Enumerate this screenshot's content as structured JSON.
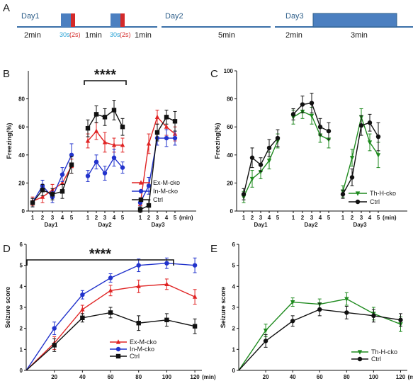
{
  "panel_letters": {
    "A": "A",
    "B": "B",
    "C": "C",
    "D": "D",
    "E": "E"
  },
  "colors": {
    "red": "#e02424",
    "blue": "#2233cc",
    "black": "#111111",
    "green": "#1e8a1e",
    "timeline": "#3a6fa8",
    "box": "#4b7fc0"
  },
  "timeline": {
    "day1": {
      "label": "Day1",
      "d1": "2min",
      "tone1": "30s",
      "shock1": "(2s)",
      "d2": "1min",
      "tone2": "30s",
      "shock2": "(2s)",
      "d3": "1min"
    },
    "day2": {
      "label": "Day2",
      "d1": "5min"
    },
    "day3": {
      "label": "Day3",
      "d1": "2min",
      "d2": "3min"
    }
  },
  "chart_data": [
    {
      "panel": "B",
      "type": "line",
      "ylabel": "Freezing(%)",
      "ylim": [
        0,
        100
      ],
      "yticks": [
        0,
        20,
        40,
        60,
        80
      ],
      "x_unit": "(min)",
      "x_ticks": [
        "1",
        "2",
        "3",
        "4",
        "5"
      ],
      "groups": [
        "Day1",
        "Day2",
        "Day3"
      ],
      "significance": "****",
      "series": [
        {
          "name": "Ex-M-cko",
          "color": "#e02424",
          "marker": "triangle",
          "values": [
            [
              7,
              10,
              15,
              20,
              32
            ],
            [
              50,
              57,
              49,
              47,
              47
            ],
            [
              5,
              48,
              67,
              60,
              55
            ]
          ],
          "errors": [
            [
              3,
              4,
              4,
              5,
              5
            ],
            [
              5,
              6,
              7,
              5,
              5
            ],
            [
              3,
              7,
              5,
              6,
              5
            ]
          ]
        },
        {
          "name": "In-M-cko",
          "color": "#2233cc",
          "marker": "circle",
          "values": [
            [
              6,
              18,
              10,
              26,
              40
            ],
            [
              25,
              35,
              27,
              38,
              31
            ],
            [
              6,
              18,
              52,
              52,
              52
            ]
          ],
          "errors": [
            [
              3,
              4,
              4,
              5,
              8
            ],
            [
              4,
              5,
              5,
              6,
              4
            ],
            [
              3,
              6,
              5,
              6,
              5
            ]
          ]
        },
        {
          "name": "Ctrl",
          "color": "#111111",
          "marker": "square",
          "values": [
            [
              6,
              15,
              12,
              14,
              33
            ],
            [
              59,
              69,
              67,
              72,
              60
            ],
            [
              1,
              4,
              56,
              67,
              64
            ]
          ],
          "errors": [
            [
              3,
              4,
              4,
              5,
              6
            ],
            [
              6,
              6,
              6,
              7,
              6
            ],
            [
              2,
              4,
              6,
              5,
              7
            ]
          ]
        }
      ]
    },
    {
      "panel": "C",
      "type": "line",
      "ylabel": "Freezing(%)",
      "ylim": [
        0,
        100
      ],
      "yticks": [
        0,
        20,
        40,
        60,
        80,
        100
      ],
      "x_unit": "(min)",
      "x_ticks": [
        "1",
        "2",
        "3",
        "4",
        "5"
      ],
      "groups": [
        "Day1",
        "Day2",
        "Day3"
      ],
      "series": [
        {
          "name": "Th-H-cko",
          "color": "#1e8a1e",
          "marker": "triangle-down",
          "values": [
            [
              10,
              23,
              28,
              36,
              50
            ],
            [
              67,
              71,
              68,
              54,
              51
            ],
            [
              14,
              38,
              67,
              49,
              40
            ]
          ],
          "errors": [
            [
              4,
              6,
              5,
              6,
              5
            ],
            [
              5,
              5,
              6,
              5,
              6
            ],
            [
              4,
              6,
              6,
              6,
              9
            ]
          ]
        },
        {
          "name": "Ctrl",
          "color": "#111111",
          "marker": "circle",
          "values": [
            [
              12,
              38,
              33,
              45,
              52
            ],
            [
              69,
              76,
              77,
              60,
              57
            ],
            [
              12,
              24,
              61,
              63,
              53
            ]
          ],
          "errors": [
            [
              4,
              7,
              5,
              6,
              6
            ],
            [
              4,
              6,
              7,
              6,
              6
            ],
            [
              3,
              6,
              7,
              6,
              10
            ]
          ]
        }
      ]
    },
    {
      "panel": "D",
      "type": "line",
      "ylabel": "Seizure score",
      "ylim": [
        0,
        6
      ],
      "yticks": [
        0,
        1,
        2,
        3,
        4,
        5,
        6
      ],
      "x": [
        0,
        20,
        40,
        60,
        80,
        100,
        120
      ],
      "xlim": [
        0,
        125
      ],
      "x_unit": "(min)",
      "significance": "****",
      "series": [
        {
          "name": "Ex-M-cko",
          "color": "#e02424",
          "marker": "triangle",
          "values": [
            0,
            1.3,
            2.9,
            3.8,
            4.0,
            4.1,
            3.5
          ],
          "errors": [
            0,
            0.3,
            0.2,
            0.25,
            0.3,
            0.25,
            0.35
          ]
        },
        {
          "name": "In-M-cko",
          "color": "#2233cc",
          "marker": "circle",
          "values": [
            0,
            2.0,
            3.6,
            4.4,
            5.0,
            5.1,
            5.0
          ],
          "errors": [
            0,
            0.3,
            0.2,
            0.2,
            0.3,
            0.25,
            0.35
          ]
        },
        {
          "name": "Ctrl",
          "color": "#111111",
          "marker": "square",
          "values": [
            0,
            1.2,
            2.5,
            2.75,
            2.25,
            2.4,
            2.1
          ],
          "errors": [
            0,
            0.3,
            0.2,
            0.25,
            0.35,
            0.3,
            0.35
          ]
        }
      ]
    },
    {
      "panel": "E",
      "type": "line",
      "ylabel": "Seizure score",
      "ylim": [
        0,
        6
      ],
      "yticks": [
        0,
        1,
        2,
        3,
        4,
        5,
        6
      ],
      "x": [
        0,
        20,
        40,
        60,
        80,
        100,
        120
      ],
      "xlim": [
        0,
        125
      ],
      "x_unit": "(min)",
      "series": [
        {
          "name": "Th-H-cko",
          "color": "#1e8a1e",
          "marker": "triangle-down",
          "values": [
            0,
            1.9,
            3.25,
            3.15,
            3.4,
            2.7,
            2.2
          ],
          "errors": [
            0,
            0.3,
            0.2,
            0.25,
            0.3,
            0.3,
            0.35
          ]
        },
        {
          "name": "Ctrl",
          "color": "#111111",
          "marker": "circle",
          "values": [
            0,
            1.4,
            2.35,
            2.9,
            2.75,
            2.6,
            2.4
          ],
          "errors": [
            0,
            0.3,
            0.25,
            0.3,
            0.3,
            0.3,
            0.3
          ]
        }
      ]
    }
  ]
}
